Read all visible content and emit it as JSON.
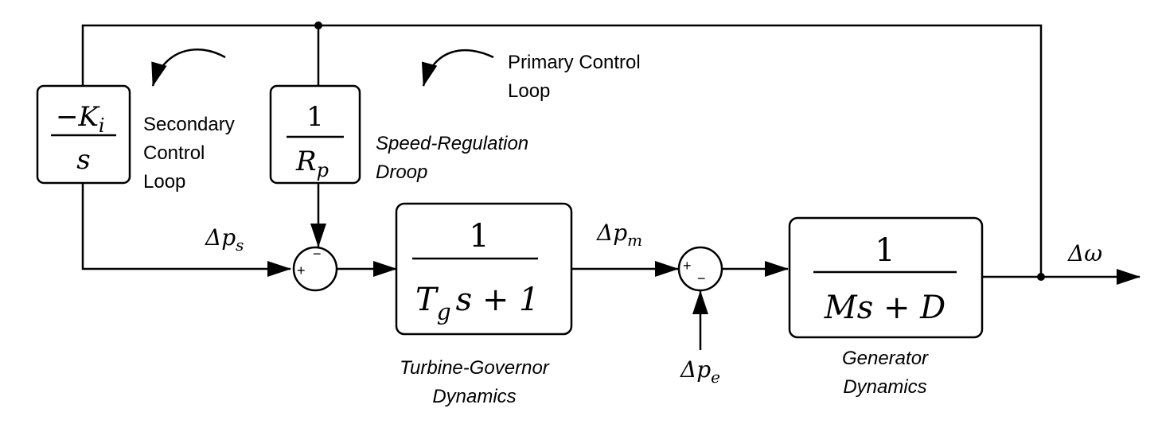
{
  "blocks": {
    "integrator": {
      "num": "−K",
      "num_sub": "i",
      "den": "s"
    },
    "droop": {
      "num": "1",
      "den": "R",
      "den_sub": "p"
    },
    "turbine": {
      "num": "1",
      "den_a": "T",
      "den_a_sub": "g",
      "den_b": "s + 1"
    },
    "generator": {
      "num": "1",
      "den": "Ms + D"
    }
  },
  "signals": {
    "dps": {
      "main": "Δp",
      "sub": "s"
    },
    "dpm": {
      "main": "Δp",
      "sub": "m"
    },
    "dpe": {
      "main": "Δp",
      "sub": "e"
    },
    "dw": "Δω"
  },
  "labels": {
    "secondary_line1": "Secondary",
    "secondary_line2": "Control",
    "secondary_line3": "Loop",
    "primary_line1": "Primary Control",
    "primary_line2": "Loop",
    "droop_line1": "Speed-Regulation",
    "droop_line2": "Droop",
    "turbine_line1": "Turbine-Governor",
    "turbine_line2": "Dynamics",
    "generator_line1": "Generator",
    "generator_line2": "Dynamics"
  },
  "summers": {
    "sum1": {
      "plus": "+",
      "minus": "−"
    },
    "sum2": {
      "plus": "+",
      "minus": "−"
    }
  }
}
